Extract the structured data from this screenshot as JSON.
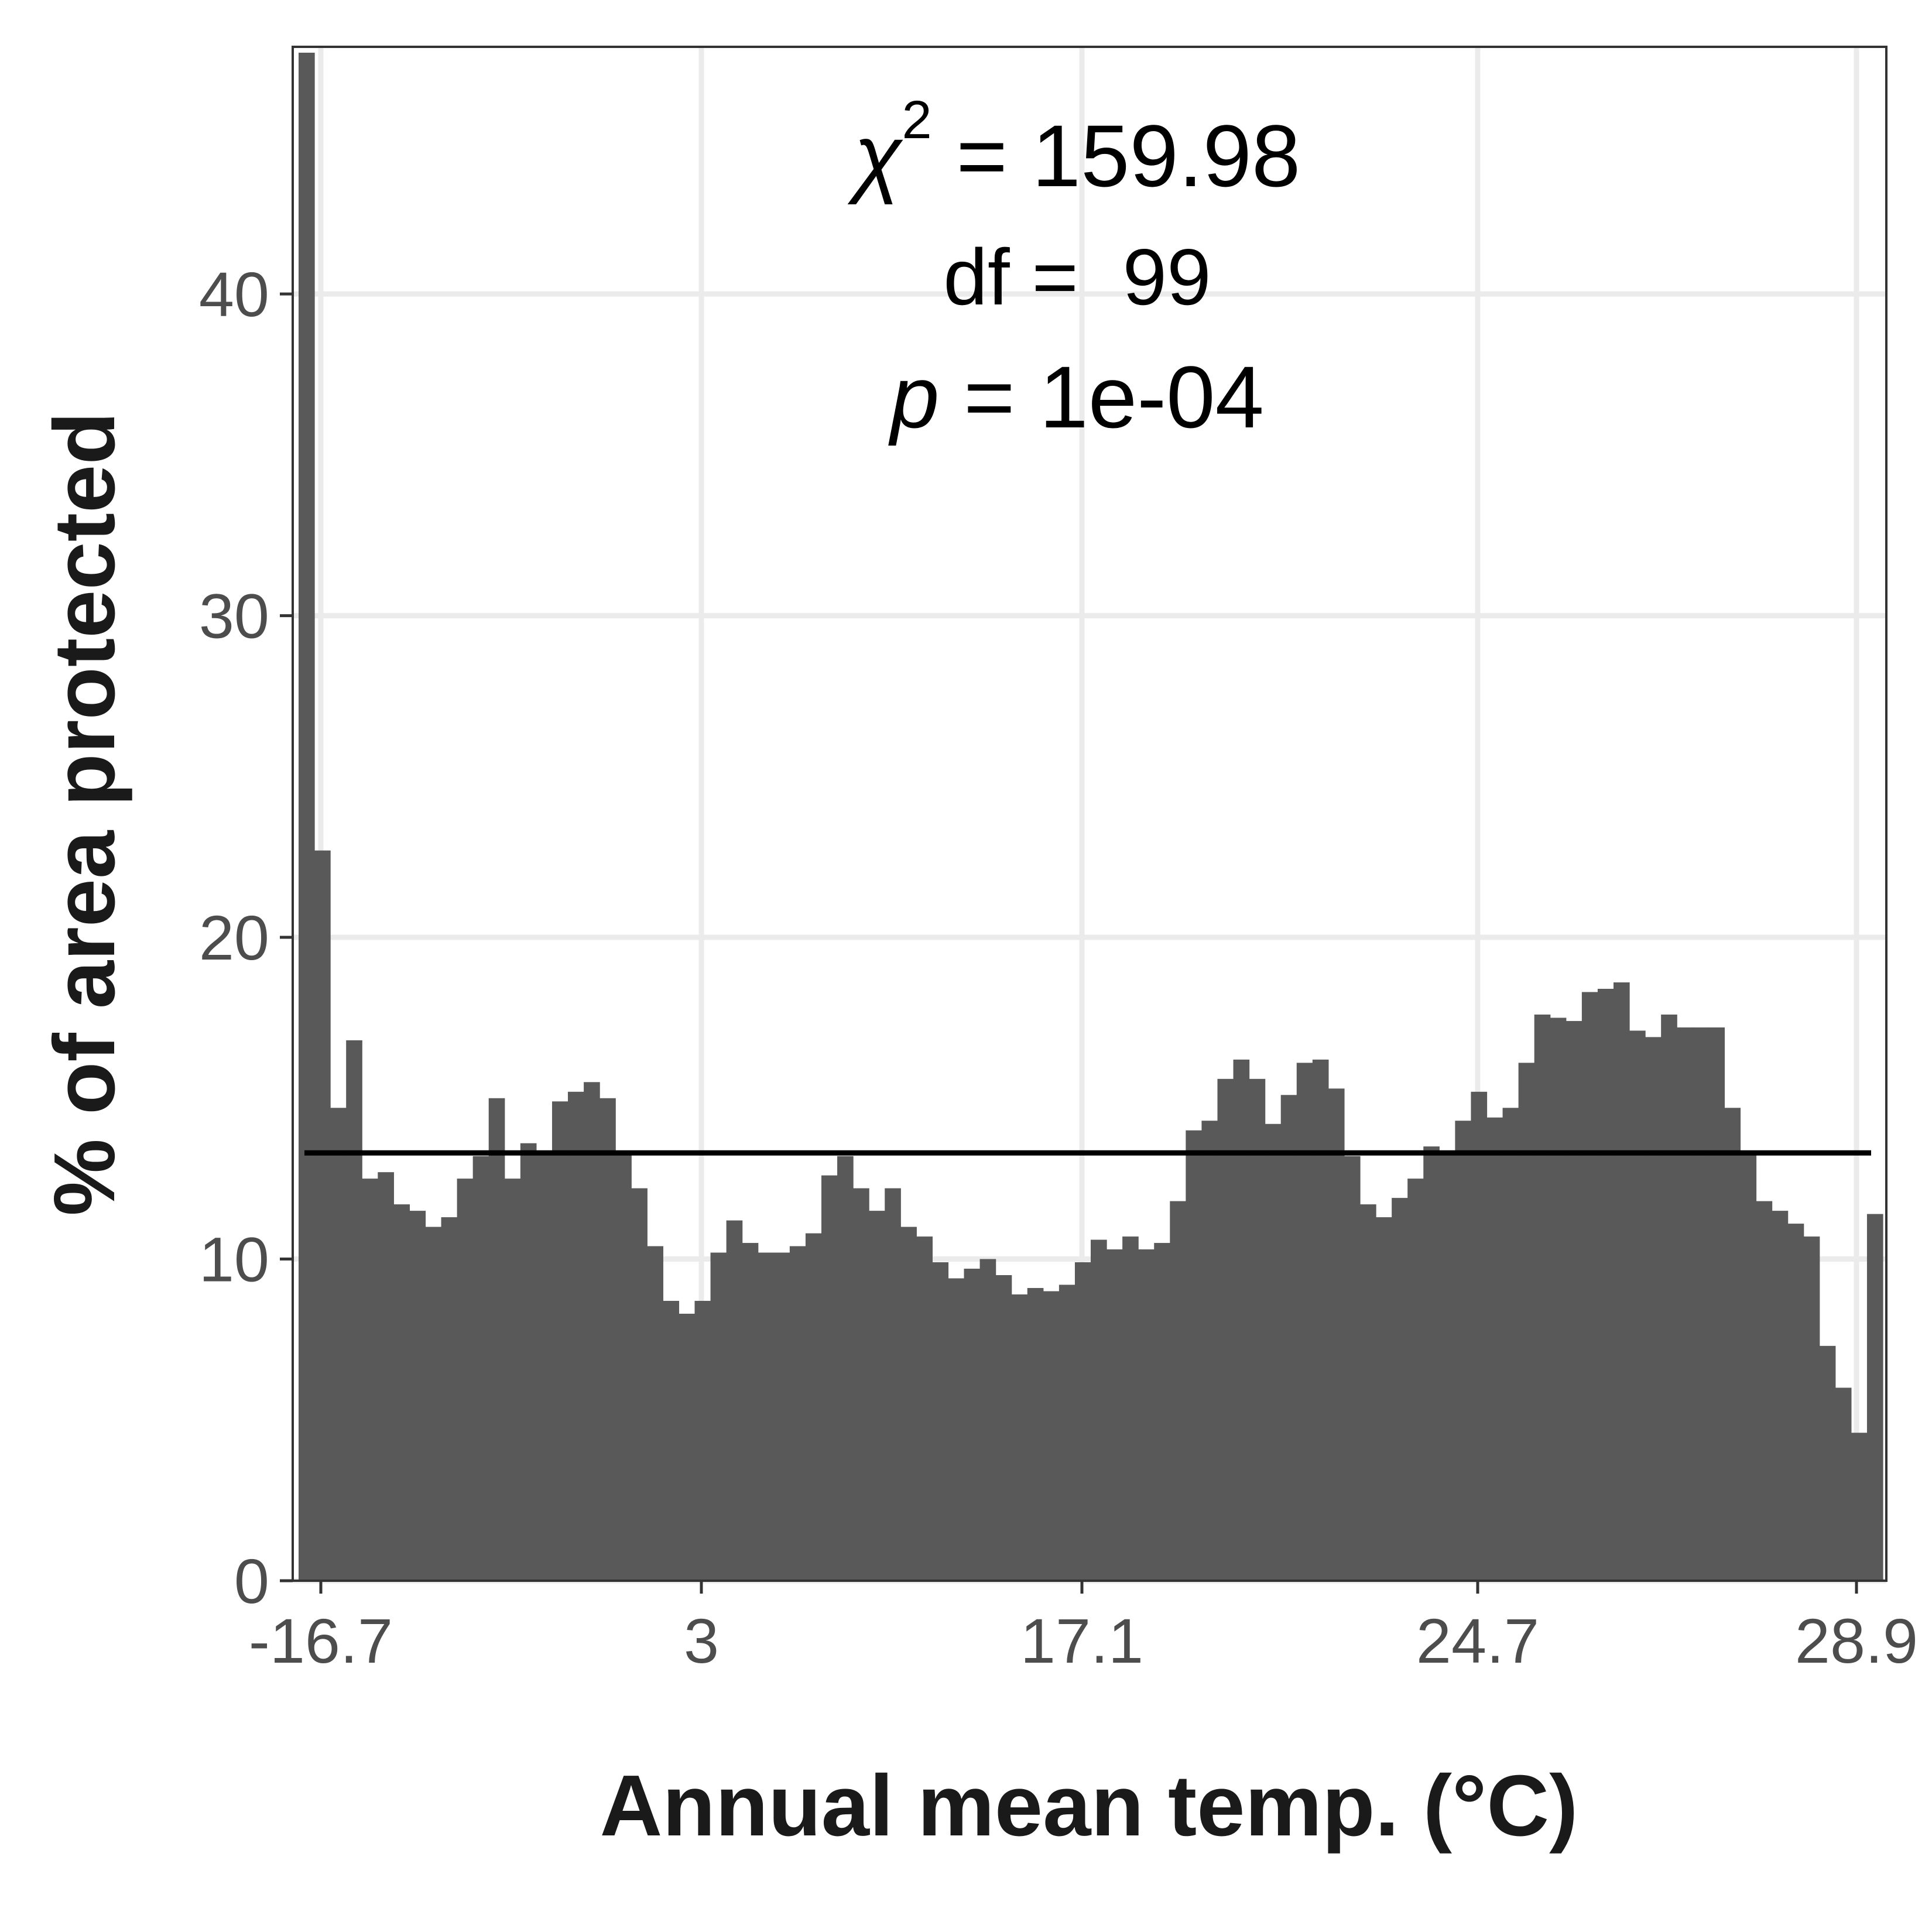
{
  "chart_data": {
    "type": "bar",
    "xlabel": "Annual mean temp. (°C)",
    "ylabel": "% of area protected",
    "ylim": [
      0,
      47.5
    ],
    "y_ticks": [
      0,
      10,
      20,
      30,
      40
    ],
    "x_tick_labels": [
      "-16.7",
      "3",
      "17.1",
      "24.7",
      "28.9"
    ],
    "grid": true,
    "reference_line": 13.3,
    "annotations": {
      "chi_symbol": "χ",
      "chi_exp": "2",
      "chi_value": " = 159.98",
      "df_text": "df =  99",
      "p_symbol": "p",
      "p_value": " = 1e-04"
    },
    "values": [
      47.5,
      22.7,
      14.7,
      16.8,
      12.5,
      12.7,
      11.7,
      11.5,
      11.0,
      11.3,
      12.5,
      13.2,
      15.0,
      12.5,
      13.6,
      13.3,
      14.9,
      15.2,
      15.5,
      15.0,
      13.3,
      12.2,
      10.4,
      8.7,
      8.3,
      8.7,
      10.2,
      11.2,
      10.5,
      10.2,
      10.2,
      10.4,
      10.8,
      12.6,
      13.2,
      12.2,
      11.5,
      12.2,
      11.0,
      10.7,
      9.9,
      9.4,
      9.7,
      10.0,
      9.5,
      8.9,
      9.1,
      9.0,
      9.2,
      9.9,
      10.6,
      10.3,
      10.7,
      10.3,
      10.5,
      11.8,
      14.0,
      14.3,
      15.6,
      16.2,
      15.6,
      14.2,
      15.1,
      16.1,
      16.2,
      15.3,
      13.2,
      11.7,
      11.3,
      11.9,
      12.5,
      13.5,
      13.3,
      14.3,
      15.2,
      14.4,
      14.7,
      16.1,
      17.6,
      17.5,
      17.4,
      18.3,
      18.4,
      18.6,
      17.1,
      16.9,
      17.6,
      17.2,
      17.2,
      17.2,
      14.7,
      13.3,
      11.8,
      11.5,
      11.1,
      10.7,
      7.3,
      6.0,
      4.6,
      11.4
    ]
  }
}
